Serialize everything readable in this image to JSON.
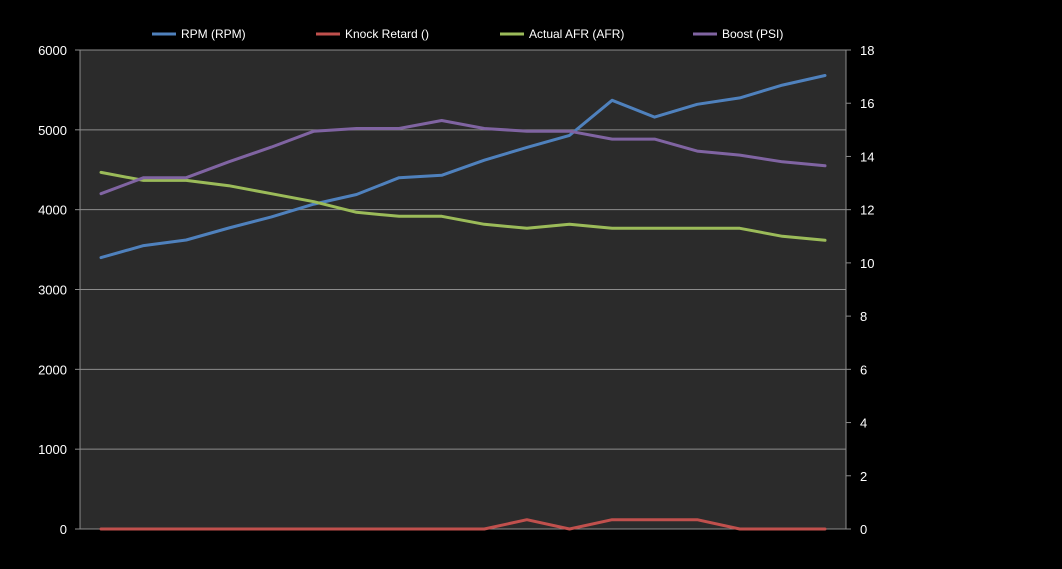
{
  "chart_data": {
    "type": "line",
    "title": "",
    "xlabel": "",
    "ylabel": "",
    "grid": true,
    "legend_position": "top",
    "plot_background": "#2b2b2b",
    "page_background": "#000000",
    "gridline_color": "#8c8c8c",
    "y_left": {
      "min": 0,
      "max": 6000,
      "ticks": [
        "0",
        "1000",
        "2000",
        "3000",
        "4000",
        "5000",
        "6000"
      ]
    },
    "y_right": {
      "min": 0,
      "max": 18,
      "ticks": [
        "0",
        "2",
        "4",
        "6",
        "8",
        "10",
        "12",
        "14",
        "16",
        "18"
      ]
    },
    "n_points": 18,
    "series": [
      {
        "name": "RPM (RPM)",
        "color": "#4f81bd",
        "axis": "left",
        "values": [
          3400,
          3550,
          3620,
          3770,
          3910,
          4070,
          4190,
          4400,
          4430,
          4620,
          4780,
          4930,
          5370,
          5160,
          5320,
          5400,
          5560,
          5680
        ]
      },
      {
        "name": "Knock Retard ()",
        "color": "#c0504d",
        "axis": "right",
        "values": [
          0,
          0,
          0,
          0,
          0,
          0,
          0,
          0,
          0,
          0,
          0.35,
          0,
          0.35,
          0.35,
          0.35,
          0,
          0,
          0
        ]
      },
      {
        "name": "Actual AFR (AFR)",
        "color": "#9bbb59",
        "axis": "right",
        "values": [
          13.4,
          13.1,
          13.1,
          12.9,
          12.6,
          12.3,
          11.9,
          11.75,
          11.75,
          11.45,
          11.3,
          11.45,
          11.3,
          11.3,
          11.3,
          11.3,
          11.0,
          10.85
        ]
      },
      {
        "name": "Boost (PSI)",
        "color": "#8064a2",
        "axis": "right",
        "values": [
          12.6,
          13.2,
          13.2,
          13.8,
          14.35,
          14.95,
          15.05,
          15.05,
          15.35,
          15.05,
          14.95,
          14.95,
          14.65,
          14.65,
          14.2,
          14.05,
          13.8,
          13.65
        ]
      }
    ]
  }
}
